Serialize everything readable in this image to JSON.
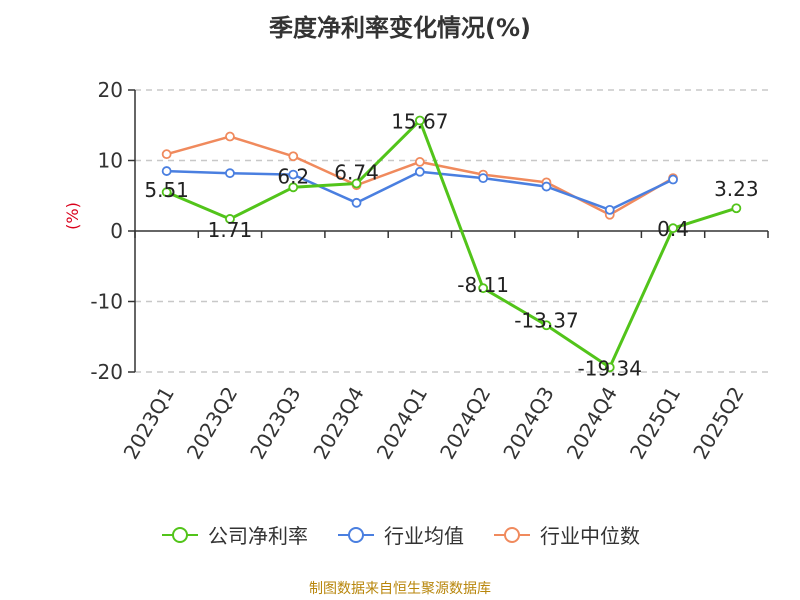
{
  "chart_data": {
    "type": "line",
    "title": "季度净利率变化情况(%)",
    "ylabel": "(%)",
    "xlabel": "",
    "categories": [
      "2023Q1",
      "2023Q2",
      "2023Q3",
      "2023Q4",
      "2024Q1",
      "2024Q2",
      "2024Q3",
      "2024Q4",
      "2025Q1",
      "2025Q2"
    ],
    "ylim": [
      -20,
      20
    ],
    "yticks": [
      -20,
      -10,
      0,
      10,
      20
    ],
    "grid": true,
    "legend_position": "bottom",
    "series": [
      {
        "name": "公司净利率",
        "color": "#52c41a",
        "values": [
          5.51,
          1.71,
          6.2,
          6.74,
          15.67,
          -8.11,
          -13.37,
          -19.34,
          0.4,
          3.23
        ],
        "labels": [
          "5.51",
          "1.71",
          "6.2",
          "6.74",
          "15.67",
          "-8.11",
          "-13.37",
          "-19.34",
          "0.4",
          "3.23"
        ]
      },
      {
        "name": "行业均值",
        "color": "#4a7fe0",
        "values": [
          8.5,
          8.2,
          8.0,
          4.0,
          8.4,
          7.5,
          6.3,
          3.0,
          7.3,
          null
        ]
      },
      {
        "name": "行业中位数",
        "color": "#f08a5d",
        "values": [
          10.9,
          13.4,
          10.6,
          6.5,
          9.8,
          8.0,
          6.9,
          2.3,
          7.5,
          null
        ]
      }
    ]
  },
  "source_note": "制图数据来自恒生聚源数据库"
}
